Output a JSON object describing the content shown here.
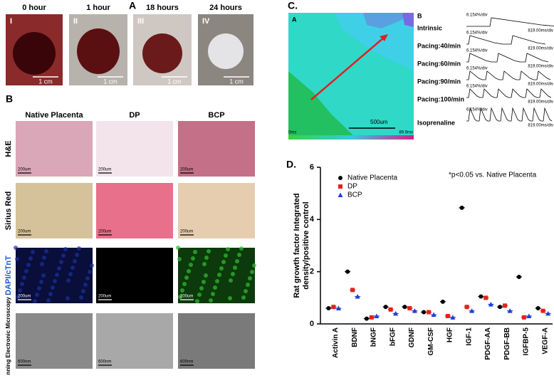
{
  "panel_a": {
    "label": "A",
    "titles": [
      "0 hour",
      "1 hour",
      "18 hours",
      "24 hours"
    ],
    "numerals": [
      "I",
      "II",
      "III",
      "IV"
    ],
    "scale": "1 cm"
  },
  "panel_b": {
    "label": "B",
    "columns": [
      "Native Placenta",
      "DP",
      "BCP"
    ],
    "rows": [
      "H&E",
      "Sirius Red",
      "DAPI/cTnT",
      "Scanning Electronic Microscopy"
    ],
    "scales": [
      "200um",
      "200um",
      "200um",
      "600nm"
    ]
  },
  "panel_c": {
    "label": "C.",
    "map_label": "A",
    "map_scale": "500um",
    "map_start": "0ms",
    "map_end": "89.9ms",
    "traces_label": "B",
    "traces": [
      "Intrinsic",
      "Pacing:40/min",
      "Pacing:60/min",
      "Pacing:90/min",
      "Pacing:100/min",
      "Isoprenaline"
    ],
    "amp_scale": "6.154%/div",
    "time_scale": "819.00ms/div"
  },
  "chart_data": {
    "type": "scatter",
    "label": "D.",
    "y_label": [
      "Rat growth factor Integrated",
      "density/positive control"
    ],
    "annotation": "*p<0.05 vs. Native Placenta",
    "categories": [
      "Activin A",
      "BDNF",
      "bNGF",
      "bFGF",
      "GDNF",
      "GM-CSF",
      "HGF",
      "IGF-1",
      "PDGF-AA",
      "PDGF-BB",
      "IGFBP-5",
      "VEGF-A"
    ],
    "series": [
      {
        "name": "Native Placenta",
        "color": "#000000",
        "marker": "circle",
        "values": [
          0.6,
          2.0,
          0.2,
          0.65,
          0.65,
          0.45,
          0.85,
          4.45,
          1.05,
          0.65,
          1.8,
          0.6
        ]
      },
      {
        "name": "DP",
        "color": "#e8201c",
        "marker": "square",
        "values": [
          0.65,
          1.3,
          0.25,
          0.55,
          0.6,
          0.45,
          0.3,
          0.65,
          1.0,
          0.7,
          0.25,
          0.5
        ]
      },
      {
        "name": "BCP",
        "color": "#1f3ed6",
        "marker": "triangle",
        "values": [
          0.6,
          1.05,
          0.3,
          0.4,
          0.5,
          0.35,
          0.25,
          0.5,
          0.75,
          0.5,
          0.3,
          0.4
        ]
      }
    ],
    "ylim": [
      0,
      6
    ],
    "yticks": [
      0,
      2,
      4,
      6
    ],
    "legend": "top-left"
  }
}
